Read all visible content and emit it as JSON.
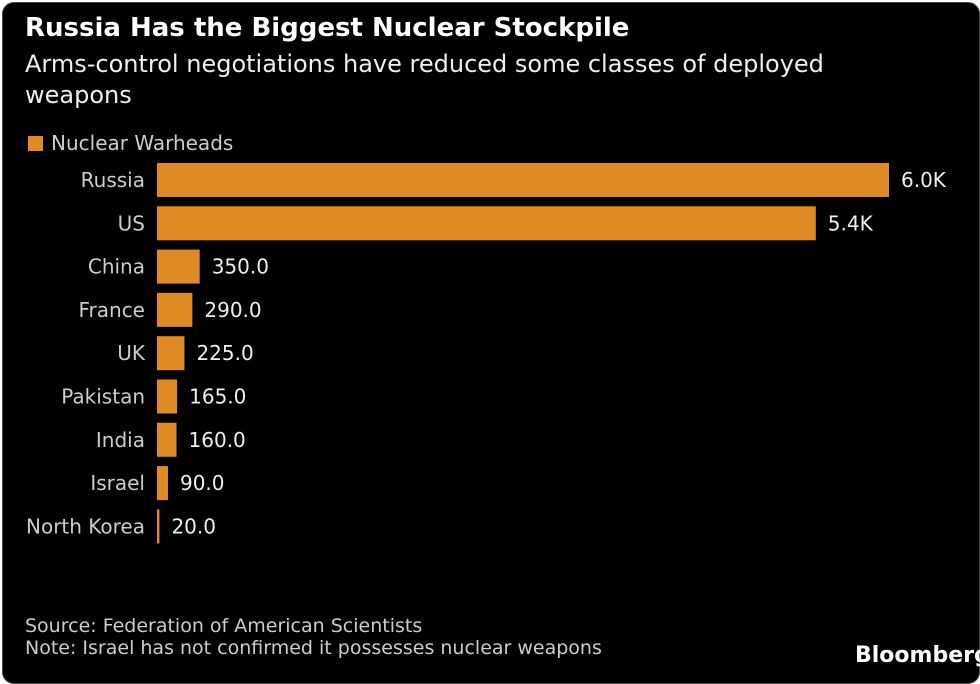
{
  "chart_data": {
    "type": "bar",
    "orientation": "horizontal",
    "title": "Russia Has the Biggest Nuclear Stockpile",
    "subtitle": "Arms-control negotiations have reduced some classes of deployed weapons",
    "legend": {
      "position": "top-left",
      "entries": [
        "Nuclear Warheads"
      ]
    },
    "categories": [
      "Russia",
      "US",
      "China",
      "France",
      "UK",
      "Pakistan",
      "India",
      "Israel",
      "North Korea"
    ],
    "series": [
      {
        "name": "Nuclear Warheads",
        "values": [
          6000,
          5400,
          350,
          290,
          225,
          165,
          160,
          90,
          20
        ],
        "color": "#e08a23"
      }
    ],
    "data_labels": [
      "6.0K",
      "5.4K",
      "350.0",
      "290.0",
      "225.0",
      "165.0",
      "160.0",
      "90.0",
      "20.0"
    ],
    "grid": false
  },
  "footer": {
    "source": "Source: Federation of American Scientists",
    "note": "Note: Israel has not confirmed it possesses nuclear weapons",
    "logo": "Bloomberg"
  }
}
